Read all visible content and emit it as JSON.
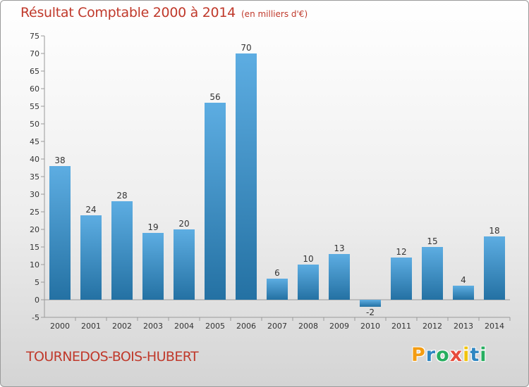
{
  "title": "Résultat Comptable 2000 à 2014",
  "subtitle": "(en milliers d'€)",
  "commune": "TOURNEDOS-BOIS-HUBERT",
  "logo": {
    "letters": [
      "P",
      "r",
      "o",
      "x",
      "i",
      "t",
      "i"
    ],
    "colors": [
      "#f39c12",
      "#2e86c1",
      "#27ae60",
      "#e74c3c",
      "#f1c40f",
      "#2e86c1",
      "#27ae60"
    ]
  },
  "colors": {
    "bar_top": "#5dade2",
    "bar_bottom": "#2471a3",
    "title": "#c0392b"
  },
  "chart_data": {
    "type": "bar",
    "title": "Résultat Comptable 2000 à 2014",
    "ylabel": "en milliers d'€",
    "categories": [
      "2000",
      "2001",
      "2002",
      "2003",
      "2004",
      "2005",
      "2006",
      "2007",
      "2008",
      "2009",
      "2010",
      "2011",
      "2012",
      "2013",
      "2014"
    ],
    "values": [
      38,
      24,
      28,
      19,
      20,
      56,
      70,
      6,
      10,
      13,
      -2,
      12,
      15,
      4,
      18
    ],
    "ylim": [
      -5,
      75
    ],
    "yticks": [
      -5,
      0,
      5,
      10,
      15,
      20,
      25,
      30,
      35,
      40,
      45,
      50,
      55,
      60,
      65,
      70,
      75
    ],
    "grid": false
  }
}
